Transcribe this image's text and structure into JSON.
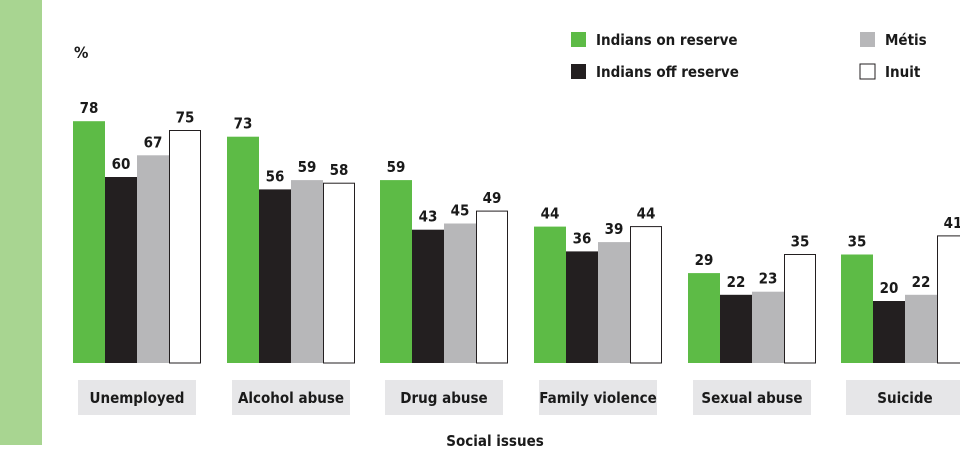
{
  "chart_data": {
    "type": "bar",
    "title": "",
    "ylabel": "%",
    "xlabel": "Social issues",
    "ylim": [
      0,
      80
    ],
    "grid": false,
    "legend_position": "top-right",
    "categories": [
      "Unemployed",
      "Alcohol abuse",
      "Drug abuse",
      "Family violence",
      "Sexual abuse",
      "Suicide"
    ],
    "series": [
      {
        "name": "Indians on reserve",
        "color": "#5dbb46",
        "values": [
          78,
          73,
          59,
          44,
          29,
          35
        ]
      },
      {
        "name": "Indians off reserve",
        "color": "#231f20",
        "values": [
          60,
          56,
          43,
          36,
          22,
          20
        ]
      },
      {
        "name": "Métis",
        "color": "#b7b7b9",
        "values": [
          67,
          59,
          45,
          39,
          23,
          22
        ]
      },
      {
        "name": "Inuit",
        "color": "#ffffff",
        "values": [
          75,
          58,
          49,
          44,
          35,
          41
        ]
      }
    ]
  }
}
